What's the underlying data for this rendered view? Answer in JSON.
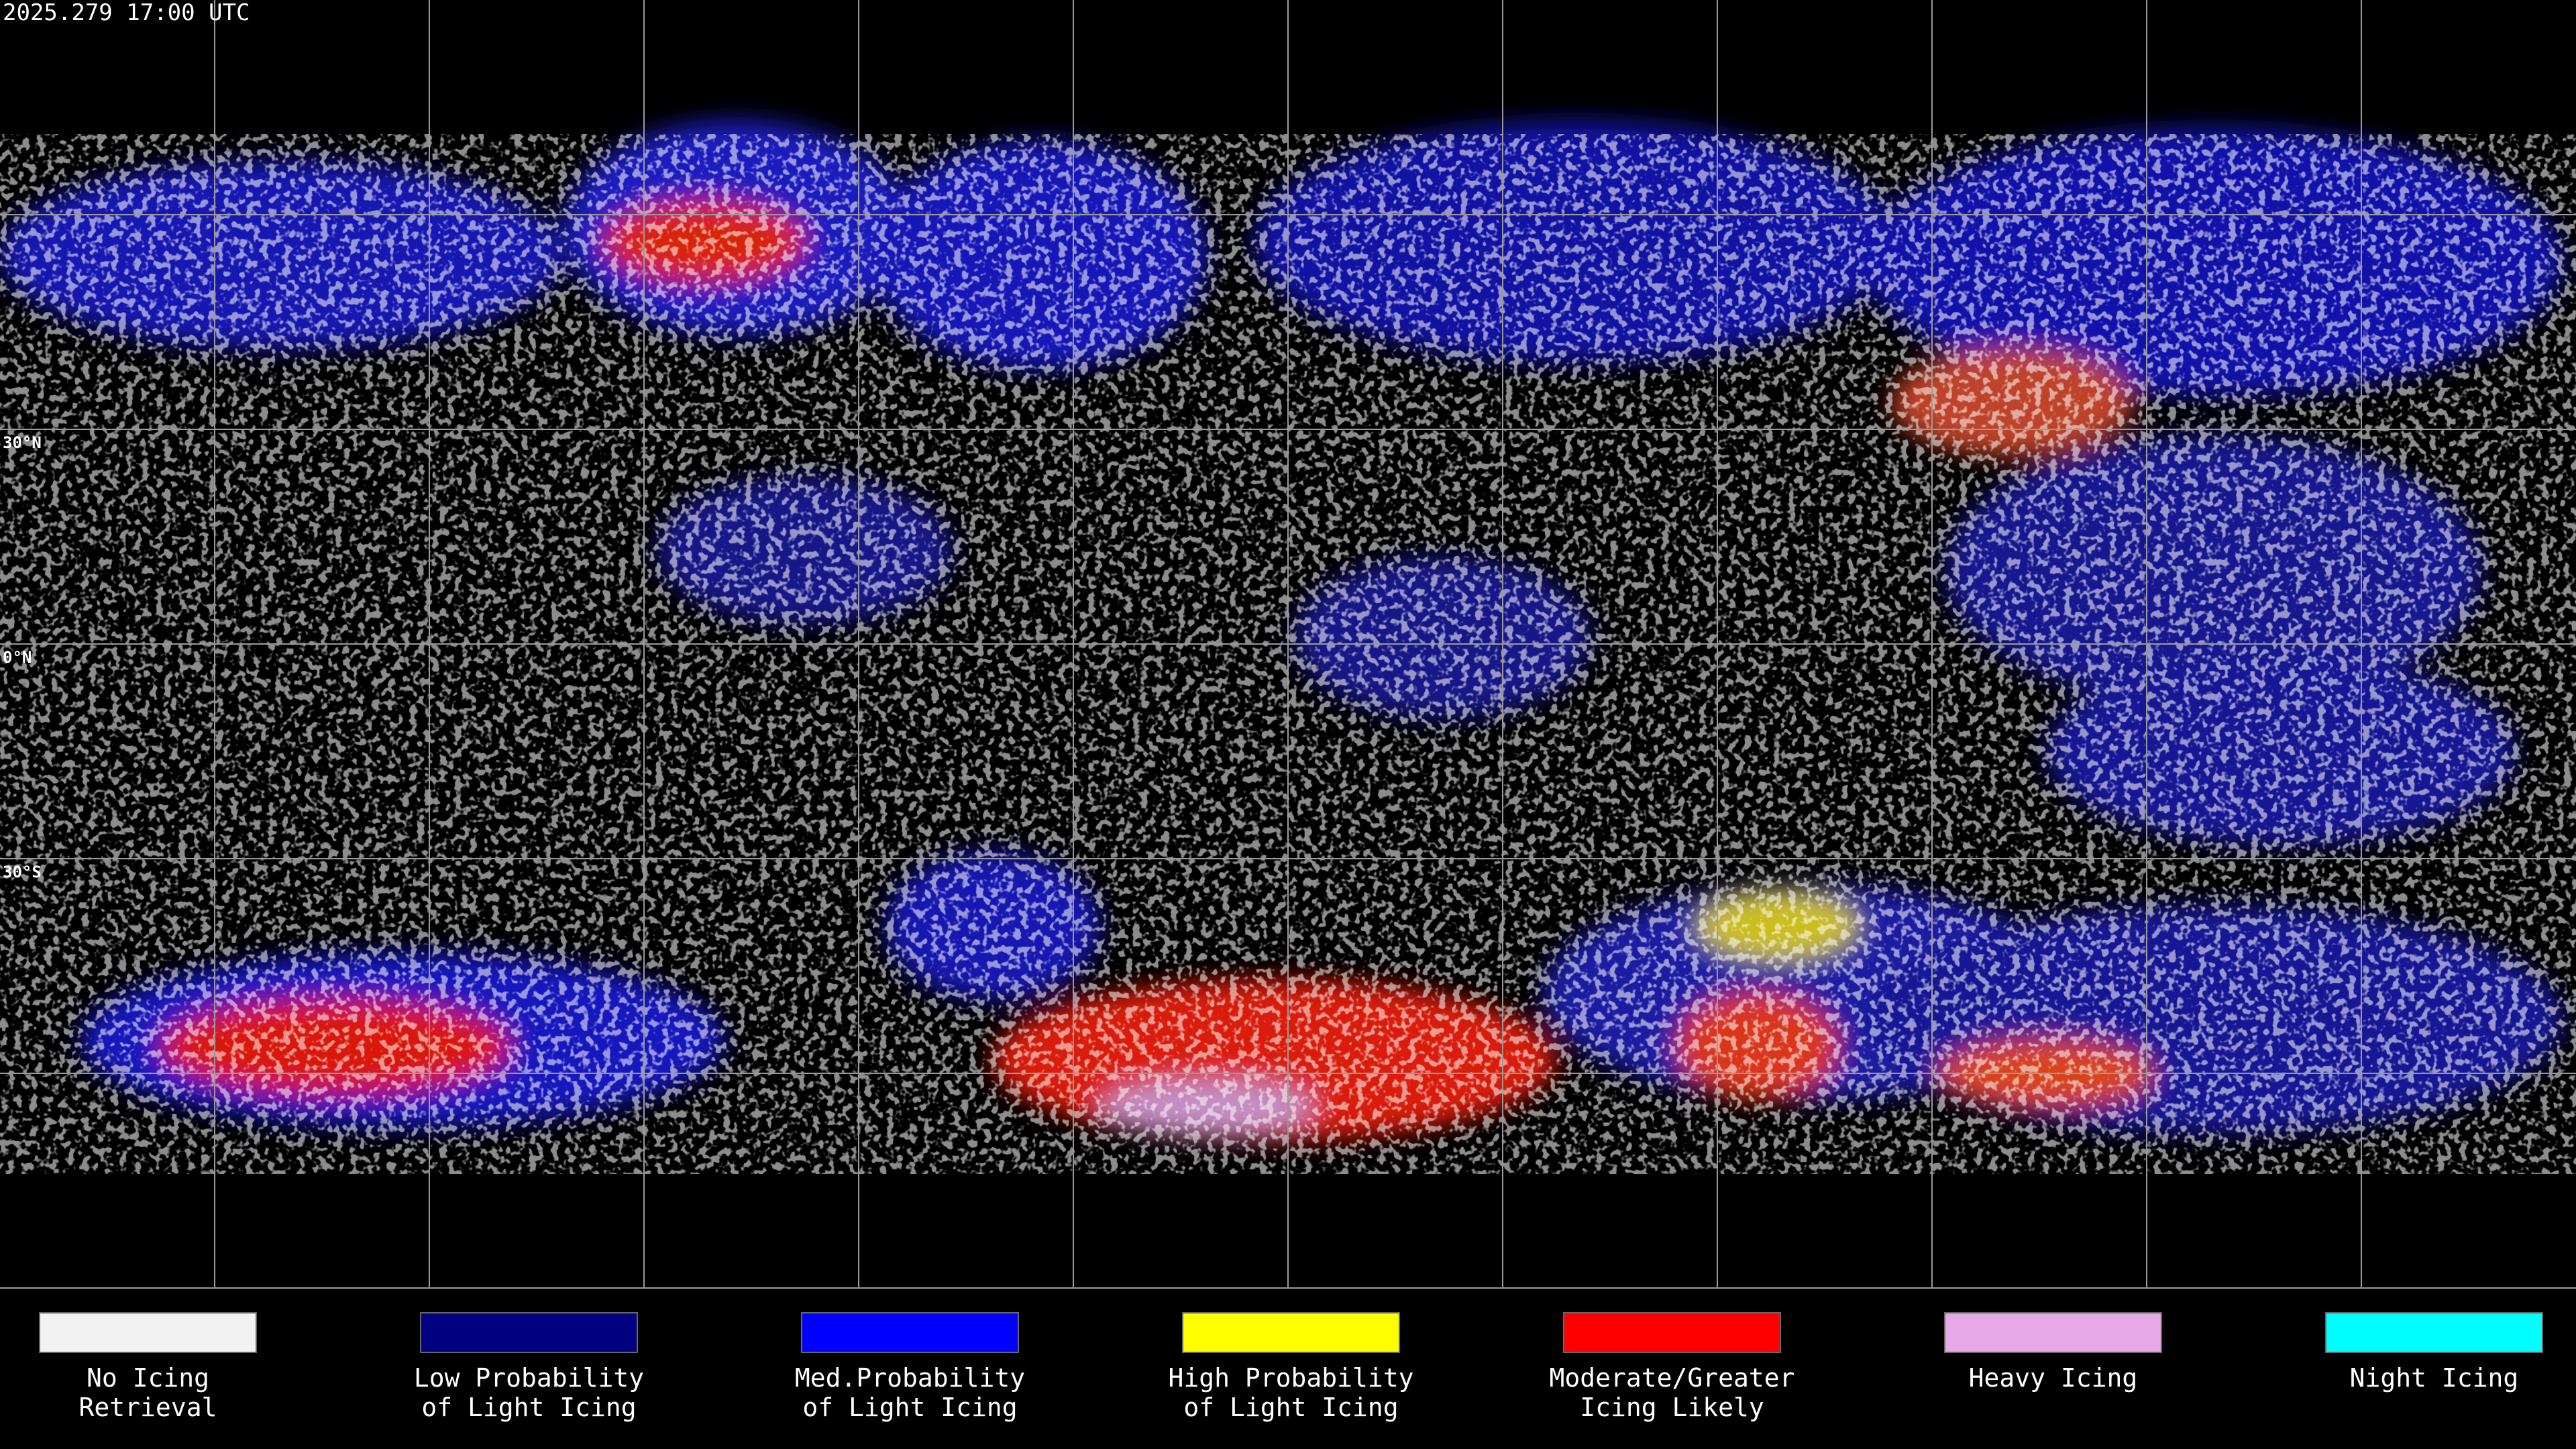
{
  "header": {
    "timestamp": "2025.279 17:00 UTC"
  },
  "map": {
    "latitude_labels": [
      "30°N",
      "0°N",
      "30°S"
    ]
  },
  "legend": {
    "items": [
      {
        "lines": [
          "No Icing",
          "Retrieval"
        ],
        "color": "#f2f2f2"
      },
      {
        "lines": [
          "Low Probability",
          "of Light Icing"
        ],
        "color": "#000080"
      },
      {
        "lines": [
          "Med.Probability",
          "of Light Icing"
        ],
        "color": "#0000ff"
      },
      {
        "lines": [
          "High Probability",
          "of Light Icing"
        ],
        "color": "#ffff00"
      },
      {
        "lines": [
          "Moderate/Greater",
          "Icing Likely"
        ],
        "color": "#ff0000"
      },
      {
        "lines": [
          "Heavy Icing"
        ],
        "color": "#e6a8e6"
      },
      {
        "lines": [
          "Night Icing"
        ],
        "color": "#00ffff"
      }
    ]
  }
}
